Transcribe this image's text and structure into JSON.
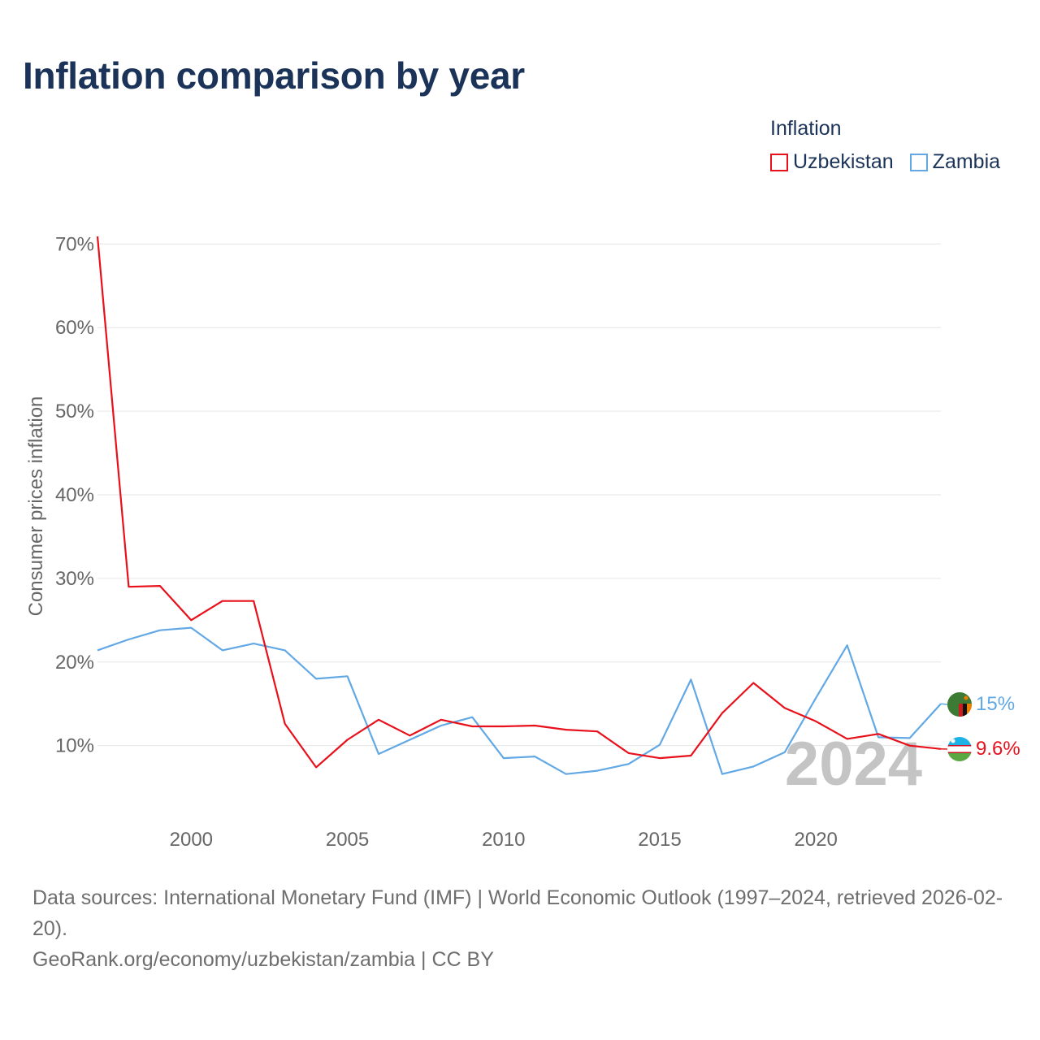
{
  "title": "Inflation comparison by year",
  "legend": {
    "title": "Inflation",
    "items": [
      {
        "label": "Uzbekistan",
        "color": "#e8101a"
      },
      {
        "label": "Zambia",
        "color": "#62a8e5"
      }
    ]
  },
  "chart_data": {
    "type": "line",
    "ylabel": "Consumer prices inflation",
    "xlabel": "",
    "xlim": [
      1997,
      2024
    ],
    "ylim": [
      2.0,
      71.0
    ],
    "x_ticks": [
      2000,
      2005,
      2010,
      2015,
      2020
    ],
    "x_tick_labels": [
      "2000",
      "2005",
      "2010",
      "2015",
      "2020"
    ],
    "y_ticks": [
      10,
      20,
      30,
      40,
      50,
      60,
      70
    ],
    "y_tick_labels": [
      "10%",
      "20%",
      "30%",
      "40%",
      "50%",
      "60%",
      "70%"
    ],
    "grid": true,
    "year_watermark": "2024",
    "x": [
      1997,
      1998,
      1999,
      2000,
      2001,
      2002,
      2003,
      2004,
      2005,
      2006,
      2007,
      2008,
      2009,
      2010,
      2011,
      2012,
      2013,
      2014,
      2015,
      2016,
      2017,
      2018,
      2019,
      2020,
      2021,
      2022,
      2023,
      2024
    ],
    "series": [
      {
        "name": "Uzbekistan",
        "color": "#e8101a",
        "values": [
          70.9,
          29.0,
          29.1,
          25.0,
          27.3,
          27.3,
          12.6,
          7.4,
          10.7,
          13.1,
          11.2,
          13.1,
          12.3,
          12.3,
          12.4,
          11.9,
          11.7,
          9.1,
          8.5,
          8.8,
          13.9,
          17.5,
          14.5,
          12.9,
          10.8,
          11.4,
          10.0,
          9.6
        ],
        "end_label": "9.6%",
        "flag": "uzbekistan-flag"
      },
      {
        "name": "Zambia",
        "color": "#62a8e5",
        "values": [
          21.4,
          22.7,
          23.8,
          24.1,
          21.4,
          22.2,
          21.4,
          18.0,
          18.3,
          9.0,
          10.7,
          12.4,
          13.4,
          8.5,
          8.7,
          6.6,
          7.0,
          7.8,
          10.1,
          17.9,
          6.6,
          7.5,
          9.2,
          15.7,
          22.0,
          11.0,
          10.9,
          15.0
        ],
        "end_label": "15%",
        "flag": "zambia-flag"
      }
    ]
  },
  "footer": {
    "sources": "Data sources: International Monetary Fund (IMF) | World Economic Outlook (1997–2024, retrieved 2026-02-20).",
    "credit": "GeoRank.org/economy/uzbekistan/zambia | CC BY"
  }
}
